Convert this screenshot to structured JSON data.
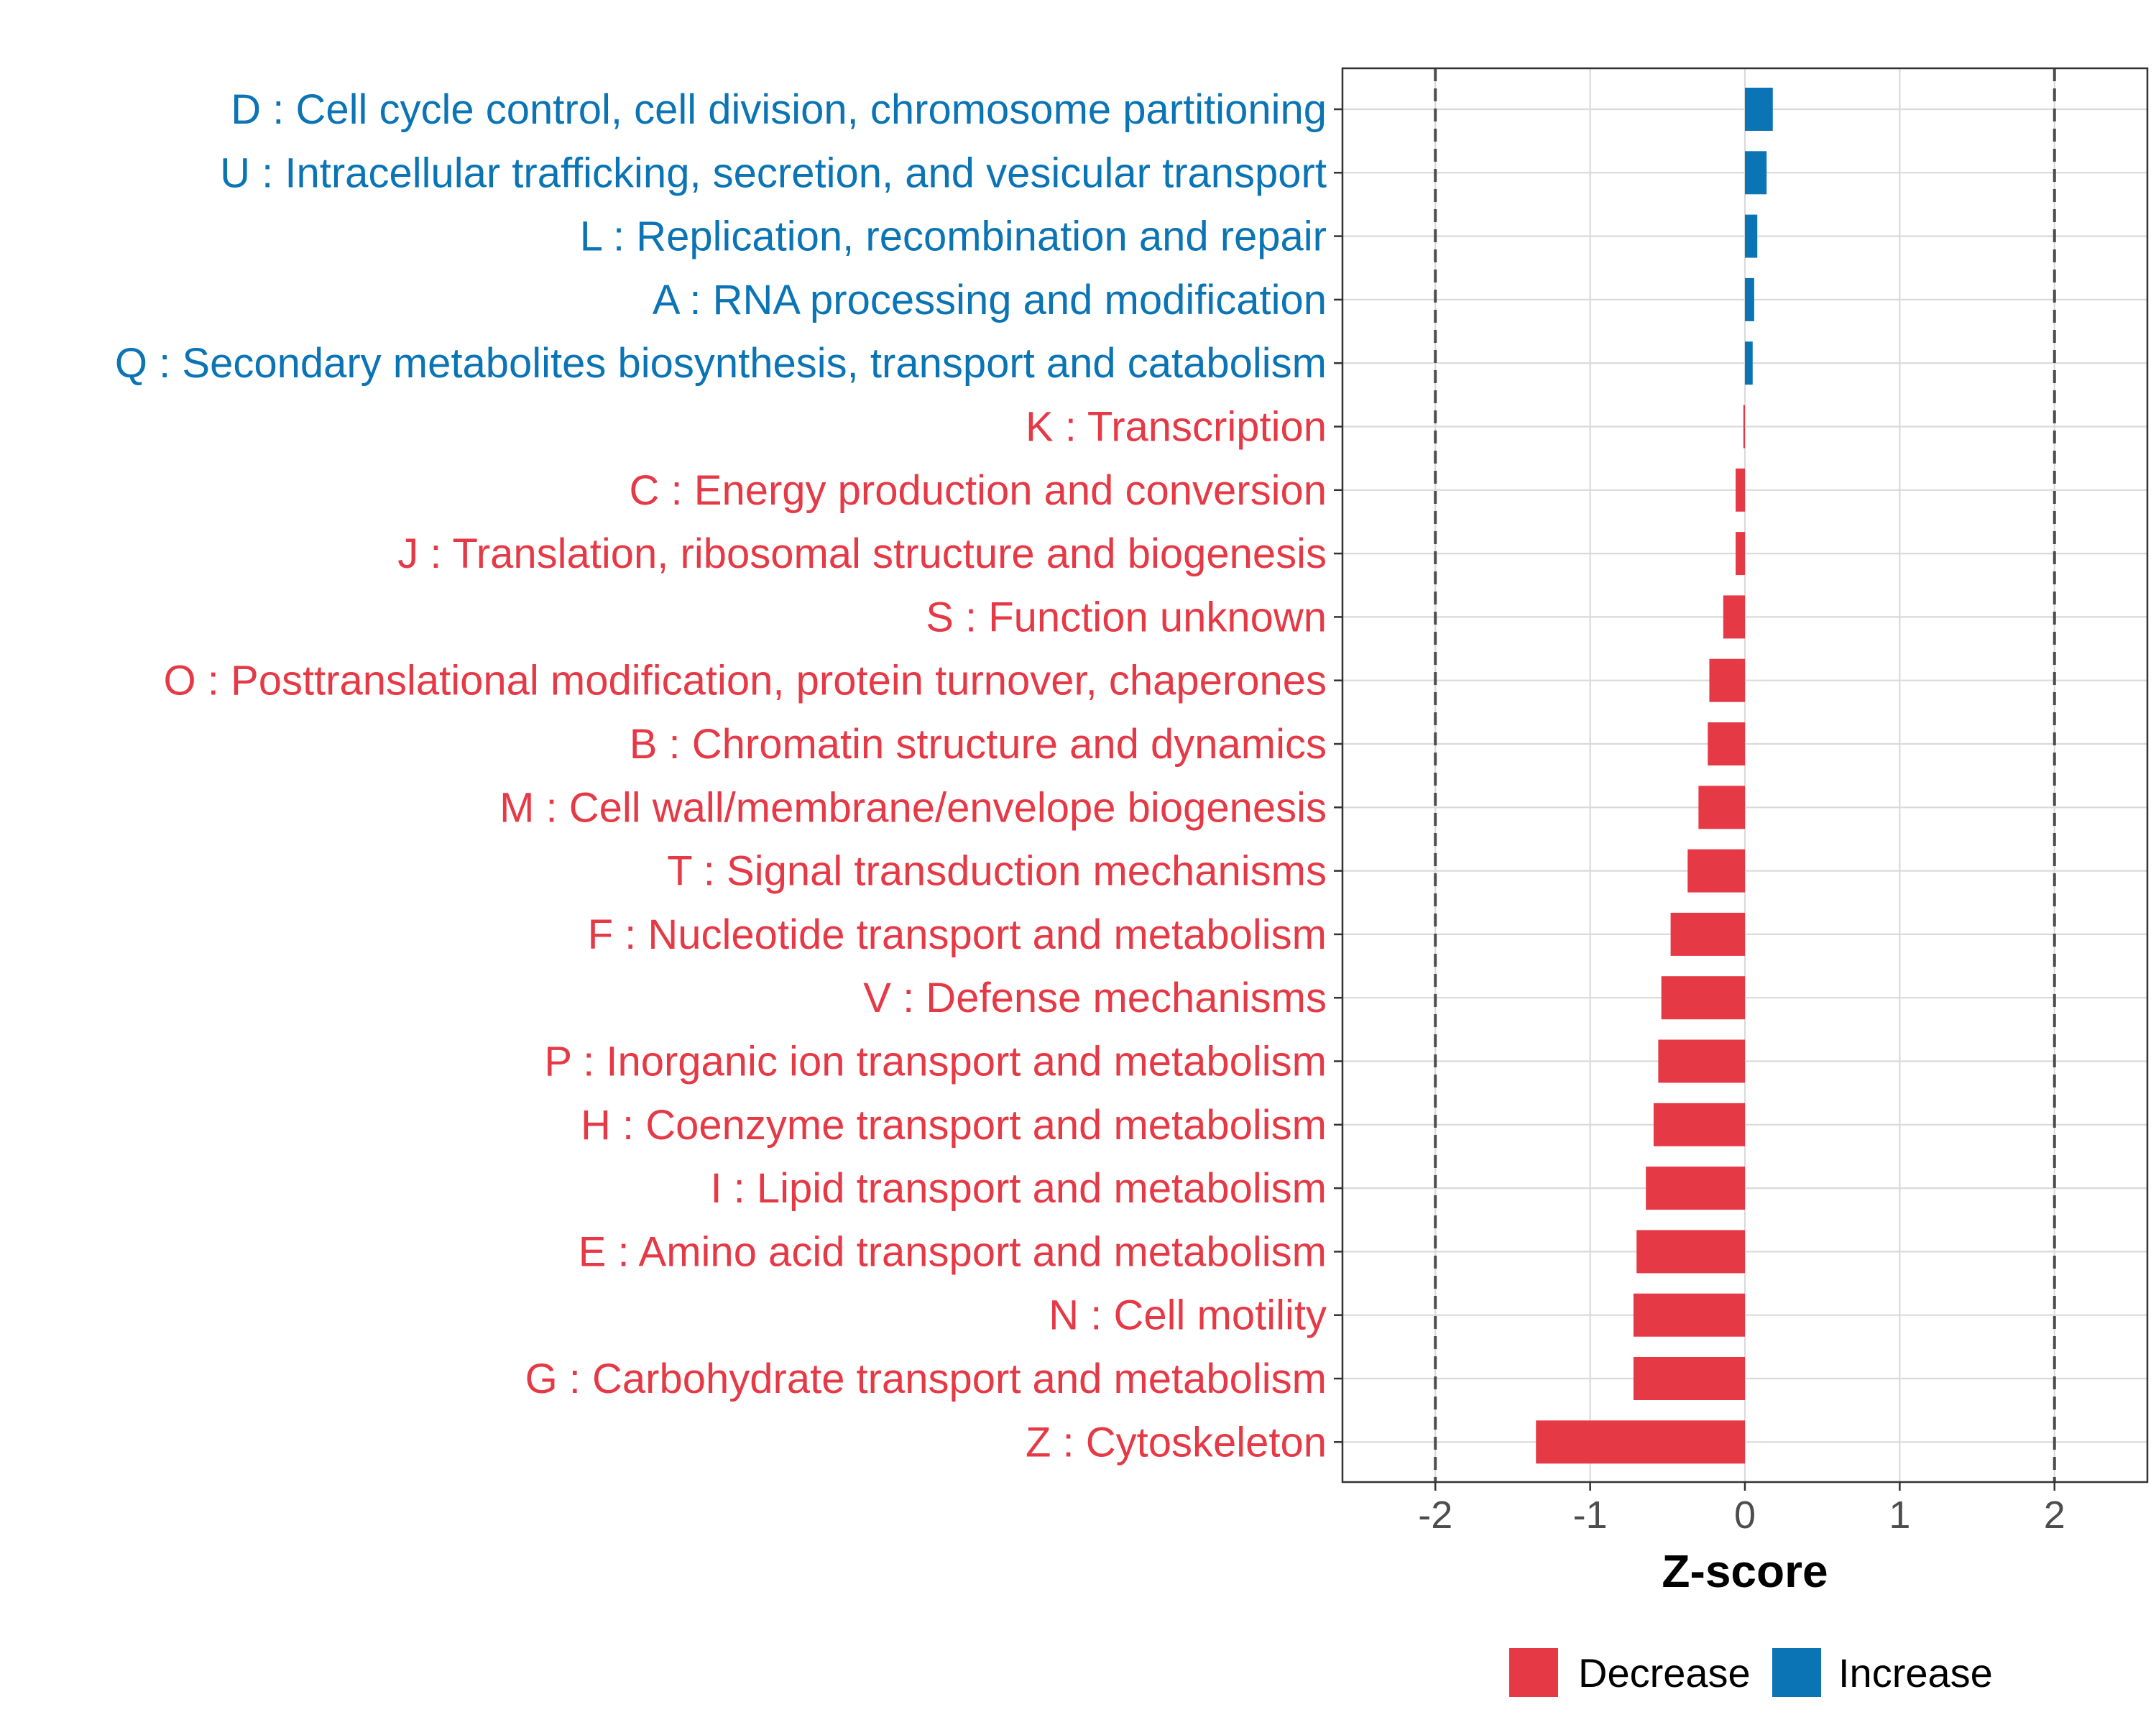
{
  "colors": {
    "decrease": "#E63946",
    "increase": "#0A74B5",
    "grid": "#DADADA",
    "refline": "#4D4D4D",
    "panel_border": "#333333"
  },
  "chart_data": {
    "type": "bar",
    "orientation": "horizontal",
    "xlabel": "Z-score",
    "xlim": [
      -2.6,
      2.6
    ],
    "xticks": [
      -2,
      -1,
      0,
      1,
      2
    ],
    "xtick_labels": [
      "-2",
      "-1",
      "0",
      "1",
      "2"
    ],
    "reference_lines": [
      -2,
      2
    ],
    "grid": true,
    "categories": [
      "D : Cell cycle control, cell division, chromosome partitioning",
      "U : Intracellular trafficking, secretion, and vesicular transport",
      "L : Replication, recombination and repair",
      "A : RNA processing and modification",
      "Q : Secondary metabolites biosynthesis, transport and catabolism",
      "K : Transcription",
      "C : Energy production and conversion",
      "J : Translation, ribosomal structure and biogenesis",
      "S : Function unknown",
      "O : Posttranslational modification, protein turnover, chaperones",
      "B : Chromatin structure and dynamics",
      "M : Cell wall/membrane/envelope biogenesis",
      "T : Signal transduction mechanisms",
      "F : Nucleotide transport and metabolism",
      "V : Defense mechanisms",
      "P : Inorganic ion transport and metabolism",
      "H : Coenzyme transport and metabolism",
      "I : Lipid transport and metabolism",
      "E : Amino acid transport and metabolism",
      "N : Cell motility",
      "G : Carbohydrate transport and metabolism",
      "Z : Cytoskeleton"
    ],
    "values": [
      0.18,
      0.14,
      0.08,
      0.06,
      0.05,
      -0.01,
      -0.06,
      -0.06,
      -0.14,
      -0.23,
      -0.24,
      -0.3,
      -0.37,
      -0.48,
      -0.54,
      -0.56,
      -0.59,
      -0.64,
      -0.7,
      -0.72,
      -0.72,
      -1.35
    ],
    "groups": [
      "Increase",
      "Increase",
      "Increase",
      "Increase",
      "Increase",
      "Decrease",
      "Decrease",
      "Decrease",
      "Decrease",
      "Decrease",
      "Decrease",
      "Decrease",
      "Decrease",
      "Decrease",
      "Decrease",
      "Decrease",
      "Decrease",
      "Decrease",
      "Decrease",
      "Decrease",
      "Decrease",
      "Decrease"
    ],
    "legend": {
      "position": "bottom",
      "entries": [
        {
          "label": "Decrease",
          "color": "#E63946"
        },
        {
          "label": "Increase",
          "color": "#0A74B5"
        }
      ]
    }
  }
}
